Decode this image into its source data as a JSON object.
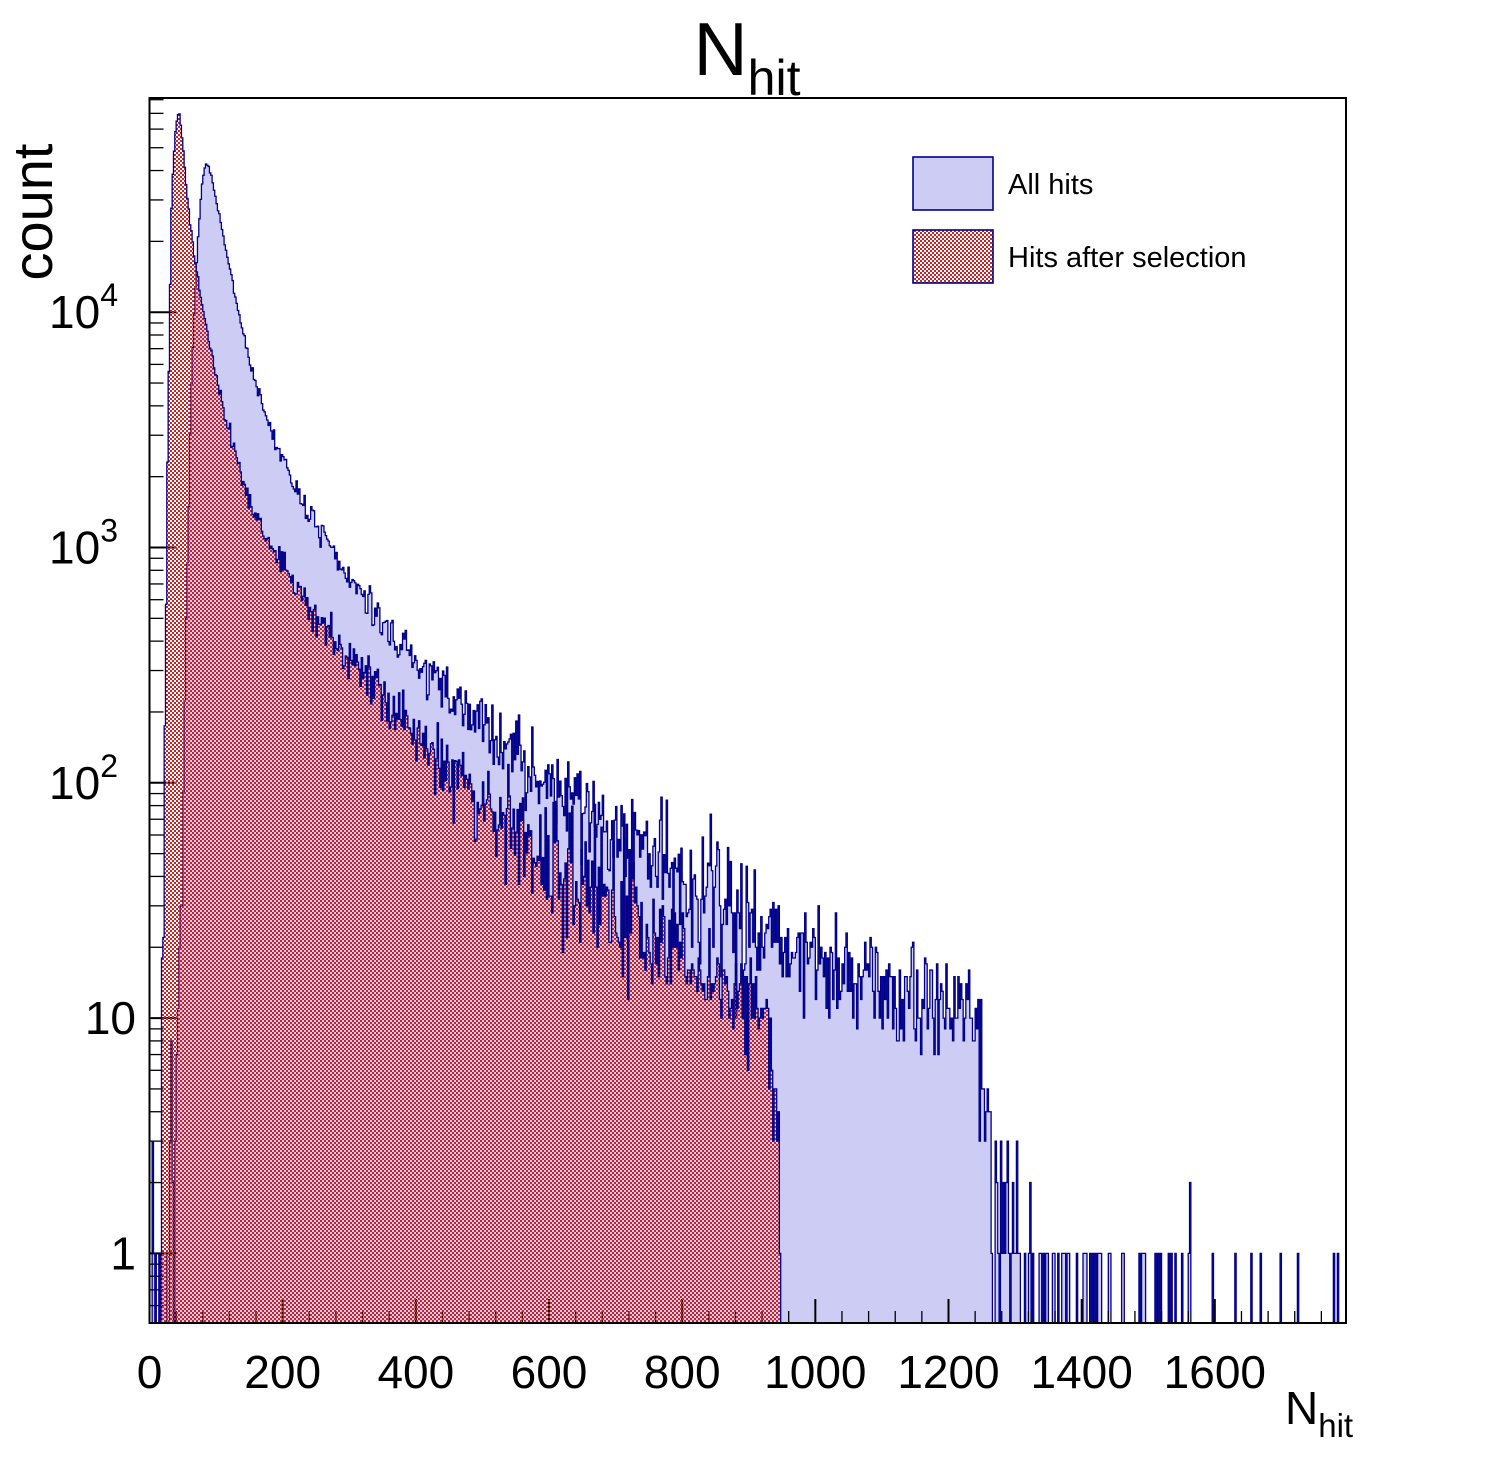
{
  "title": {
    "main": "N",
    "sub": "hit"
  },
  "y_axis": {
    "label": "count",
    "ticks": [
      {
        "value": 1,
        "base": "1",
        "exp": ""
      },
      {
        "value": 10,
        "base": "10",
        "exp": ""
      },
      {
        "value": 100,
        "base": "10",
        "exp": "2"
      },
      {
        "value": 1000,
        "base": "10",
        "exp": "3"
      },
      {
        "value": 10000,
        "base": "10",
        "exp": "4"
      }
    ],
    "range": [
      0.5,
      81000
    ],
    "scale": "log"
  },
  "x_axis": {
    "label_main": "N",
    "label_sub": "hit",
    "major_ticks": [
      0,
      200,
      400,
      600,
      800,
      1000,
      1200,
      1400,
      1600
    ],
    "minor_step": 40,
    "range": [
      0,
      1797
    ]
  },
  "legend": {
    "entries": [
      {
        "label": "All hits",
        "swatch": "solid-blue"
      },
      {
        "label": "Hits after selection",
        "swatch": "red-checker"
      }
    ]
  },
  "colors": {
    "fill_blue": "#ccccf4",
    "line_navy": "#00008b",
    "red_checker": "#cc2222",
    "frame": "#000000"
  },
  "chart_data": {
    "type": "histogram-overlay",
    "title": "N_hit",
    "xlabel": "N_hit",
    "ylabel": "count",
    "ylog": true,
    "xlim": [
      0,
      1797
    ],
    "ylim": [
      0.5,
      81000
    ],
    "bin_width": 2,
    "series": [
      {
        "name": "All hits",
        "style": "solid-blue",
        "seed": 7,
        "points": [
          [
            0,
            0.4
          ],
          [
            4,
            1.2
          ],
          [
            8,
            0.9
          ],
          [
            12,
            0.8
          ],
          [
            16,
            0.9
          ],
          [
            20,
            1.1
          ],
          [
            25,
            1.4
          ],
          [
            30,
            2
          ],
          [
            35,
            3
          ],
          [
            40,
            5
          ],
          [
            45,
            14
          ],
          [
            50,
            60
          ],
          [
            55,
            420
          ],
          [
            60,
            2200
          ],
          [
            64,
            6000
          ],
          [
            68,
            11500
          ],
          [
            72,
            19000
          ],
          [
            76,
            28000
          ],
          [
            80,
            37000
          ],
          [
            84,
            42500
          ],
          [
            88,
            42000
          ],
          [
            92,
            38500
          ],
          [
            96,
            34000
          ],
          [
            100,
            30000
          ],
          [
            105,
            25500
          ],
          [
            110,
            21500
          ],
          [
            115,
            18200
          ],
          [
            120,
            15500
          ],
          [
            125,
            13200
          ],
          [
            130,
            11300
          ],
          [
            135,
            9700
          ],
          [
            140,
            8400
          ],
          [
            145,
            7300
          ],
          [
            150,
            6300
          ],
          [
            155,
            5560
          ],
          [
            160,
            4950
          ],
          [
            165,
            4430
          ],
          [
            170,
            3990
          ],
          [
            175,
            3610
          ],
          [
            180,
            3280
          ],
          [
            185,
            3000
          ],
          [
            190,
            2760
          ],
          [
            195,
            2550
          ],
          [
            200,
            2360
          ],
          [
            210,
            2040
          ],
          [
            220,
            1780
          ],
          [
            230,
            1570
          ],
          [
            240,
            1390
          ],
          [
            250,
            1240
          ],
          [
            260,
            1110
          ],
          [
            270,
            1000
          ],
          [
            280,
            905
          ],
          [
            290,
            820
          ],
          [
            300,
            745
          ],
          [
            315,
            650
          ],
          [
            330,
            570
          ],
          [
            345,
            500
          ],
          [
            360,
            443
          ],
          [
            375,
            394
          ],
          [
            390,
            352
          ],
          [
            405,
            316
          ],
          [
            420,
            285
          ],
          [
            435,
            258
          ],
          [
            450,
            235
          ],
          [
            465,
            214
          ],
          [
            480,
            196
          ],
          [
            495,
            180
          ],
          [
            510,
            166
          ],
          [
            525,
            153
          ],
          [
            540,
            142
          ],
          [
            555,
            131
          ],
          [
            570,
            121
          ],
          [
            585,
            112
          ],
          [
            600,
            104
          ],
          [
            615,
            96
          ],
          [
            630,
            89
          ],
          [
            645,
            83
          ],
          [
            660,
            77
          ],
          [
            675,
            72
          ],
          [
            690,
            67
          ],
          [
            705,
            62
          ],
          [
            720,
            58
          ],
          [
            735,
            54
          ],
          [
            750,
            51
          ],
          [
            765,
            48
          ],
          [
            780,
            45
          ],
          [
            795,
            42
          ],
          [
            810,
            40
          ],
          [
            825,
            38
          ],
          [
            840,
            35
          ],
          [
            855,
            33
          ],
          [
            870,
            31
          ],
          [
            885,
            29
          ],
          [
            900,
            27
          ],
          [
            915,
            25.5
          ],
          [
            930,
            24
          ],
          [
            945,
            22.5
          ],
          [
            960,
            21.5
          ],
          [
            975,
            20.5
          ],
          [
            990,
            19.5
          ],
          [
            1005,
            18.5
          ],
          [
            1020,
            18
          ],
          [
            1035,
            17
          ],
          [
            1050,
            16.5
          ],
          [
            1065,
            16
          ],
          [
            1080,
            15.5
          ],
          [
            1095,
            15
          ],
          [
            1110,
            14.5
          ],
          [
            1125,
            14
          ],
          [
            1140,
            13.5
          ],
          [
            1155,
            13
          ],
          [
            1170,
            12.7
          ],
          [
            1185,
            12.3
          ],
          [
            1200,
            12
          ],
          [
            1215,
            11.5
          ],
          [
            1230,
            11
          ],
          [
            1245,
            10
          ],
          [
            1252,
            8
          ],
          [
            1258,
            5
          ],
          [
            1264,
            3
          ],
          [
            1272,
            1.8
          ],
          [
            1282,
            1.2
          ],
          [
            1295,
            1
          ],
          [
            1310,
            0.85
          ],
          [
            1330,
            0.7
          ],
          [
            1355,
            0.6
          ],
          [
            1380,
            0.5
          ],
          [
            1410,
            0.45
          ],
          [
            1440,
            0.4
          ],
          [
            1470,
            0.35
          ],
          [
            1500,
            0.3
          ],
          [
            1530,
            0.26
          ],
          [
            1560,
            0.23
          ],
          [
            1590,
            0.2
          ],
          [
            1620,
            0.17
          ],
          [
            1660,
            0.14
          ],
          [
            1700,
            0.12
          ],
          [
            1740,
            0.11
          ],
          [
            1775,
            0.1
          ],
          [
            1796,
            0.08
          ]
        ]
      },
      {
        "name": "Hits after selection",
        "style": "red-checker",
        "seed": 13,
        "cutoff": 950,
        "points": [
          [
            8,
            0.5
          ],
          [
            12,
            1.5
          ],
          [
            16,
            4
          ],
          [
            20,
            25
          ],
          [
            24,
            300
          ],
          [
            27,
            2500
          ],
          [
            30,
            9000
          ],
          [
            33,
            28000
          ],
          [
            36,
            45000
          ],
          [
            39,
            58000
          ],
          [
            42,
            68000
          ],
          [
            45,
            69000
          ],
          [
            48,
            60000
          ],
          [
            51,
            48000
          ],
          [
            54,
            38000
          ],
          [
            57,
            30500
          ],
          [
            60,
            25500
          ],
          [
            64,
            20500
          ],
          [
            68,
            17000
          ],
          [
            72,
            14200
          ],
          [
            76,
            12000
          ],
          [
            80,
            10300
          ],
          [
            85,
            8700
          ],
          [
            90,
            7400
          ],
          [
            95,
            6300
          ],
          [
            100,
            5400
          ],
          [
            106,
            4500
          ],
          [
            112,
            3820
          ],
          [
            118,
            3270
          ],
          [
            124,
            2820
          ],
          [
            130,
            2450
          ],
          [
            137,
            2070
          ],
          [
            144,
            1780
          ],
          [
            151,
            1560
          ],
          [
            158,
            1400
          ],
          [
            165,
            1270
          ],
          [
            172,
            1160
          ],
          [
            180,
            1050
          ],
          [
            188,
            960
          ],
          [
            196,
            880
          ],
          [
            205,
            800
          ],
          [
            215,
            720
          ],
          [
            225,
            650
          ],
          [
            235,
            592
          ],
          [
            245,
            540
          ],
          [
            255,
            494
          ],
          [
            265,
            452
          ],
          [
            275,
            415
          ],
          [
            285,
            382
          ],
          [
            295,
            352
          ],
          [
            310,
            312
          ],
          [
            325,
            277
          ],
          [
            340,
            247
          ],
          [
            355,
            221
          ],
          [
            370,
            198
          ],
          [
            385,
            178
          ],
          [
            400,
            160
          ],
          [
            420,
            139
          ],
          [
            440,
            121
          ],
          [
            460,
            106
          ],
          [
            480,
            94
          ],
          [
            500,
            84
          ],
          [
            520,
            75
          ],
          [
            540,
            67
          ],
          [
            560,
            60
          ],
          [
            580,
            54
          ],
          [
            600,
            49
          ],
          [
            620,
            44
          ],
          [
            640,
            40
          ],
          [
            660,
            36
          ],
          [
            680,
            33
          ],
          [
            700,
            30
          ],
          [
            720,
            27
          ],
          [
            740,
            25
          ],
          [
            760,
            23
          ],
          [
            780,
            21
          ],
          [
            800,
            19
          ],
          [
            820,
            17.5
          ],
          [
            840,
            16
          ],
          [
            860,
            14.5
          ],
          [
            880,
            13.3
          ],
          [
            900,
            12.2
          ],
          [
            912,
            11.3
          ],
          [
            922,
            10.4
          ],
          [
            930,
            9
          ],
          [
            936,
            6.5
          ],
          [
            941,
            4.5
          ],
          [
            945,
            2.8
          ],
          [
            948,
            1.4
          ],
          [
            950,
            0
          ]
        ]
      }
    ]
  }
}
